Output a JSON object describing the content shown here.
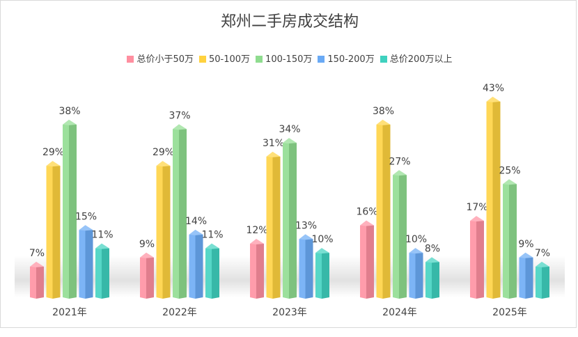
{
  "chart_data": {
    "type": "bar",
    "title": "郑州二手房成交结构",
    "categories": [
      "2021年",
      "2022年",
      "2023年",
      "2024年",
      "2025年"
    ],
    "series": [
      {
        "name": "总价小于50万",
        "values": [
          7,
          9,
          12,
          16,
          17
        ],
        "color": "#ff8fa0"
      },
      {
        "name": "50-100万",
        "values": [
          29,
          29,
          31,
          38,
          43
        ],
        "color": "#ffd23f"
      },
      {
        "name": "100-150万",
        "values": [
          38,
          37,
          34,
          27,
          25
        ],
        "color": "#8fdc8f"
      },
      {
        "name": "150-200万",
        "values": [
          15,
          14,
          13,
          10,
          9
        ],
        "color": "#6aaaf5"
      },
      {
        "name": "总价200万以上",
        "values": [
          11,
          11,
          10,
          8,
          7
        ],
        "color": "#3fd1bf"
      }
    ],
    "value_suffix": "%",
    "ylim": [
      0,
      48
    ],
    "grid": false,
    "legend_position": "top"
  }
}
